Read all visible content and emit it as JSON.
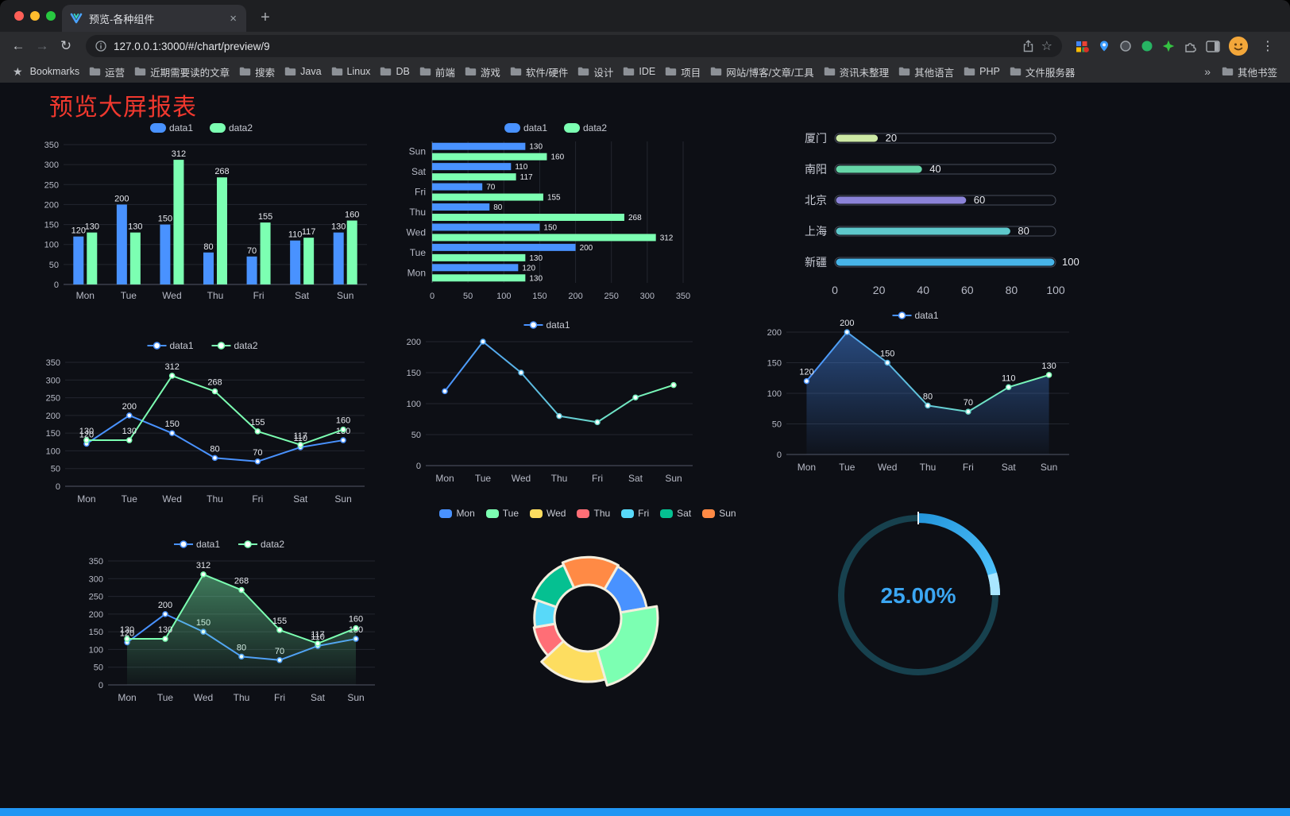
{
  "browser": {
    "tab_title": "预览-各种组件",
    "tab_close_label": "×",
    "new_tab_label": "+",
    "back_label": "←",
    "forward_label": "→",
    "reload_label": "↻",
    "url": "127.0.0.1:3000/#/chart/preview/9",
    "star_label": "☆",
    "menu_label": "⋮",
    "bookmarks_label": "Bookmarks",
    "bookmarks": [
      "运营",
      "近期需要读的文章",
      "搜索",
      "Java",
      "Linux",
      "DB",
      "前端",
      "游戏",
      "软件/硬件",
      "设计",
      "IDE",
      "项目",
      "网站/博客/文章/工具",
      "资讯未整理",
      "其他语言",
      "PHP",
      "文件服务器"
    ],
    "overflow_label": "»",
    "other_bookmarks_label": "其他书签"
  },
  "page": {
    "title": "预览大屏报表",
    "title_color": "#f0382e",
    "accent_bar_color": "#2196f3",
    "background": "#0d0f15"
  },
  "chart_data": [
    {
      "id": "grouped-bar",
      "type": "bar",
      "categories": [
        "Mon",
        "Tue",
        "Wed",
        "Thu",
        "Fri",
        "Sat",
        "Sun"
      ],
      "series": [
        {
          "name": "data1",
          "color": "#4992ff",
          "values": [
            120,
            200,
            150,
            80,
            70,
            110,
            130
          ]
        },
        {
          "name": "data2",
          "color": "#7cffb2",
          "values": [
            130,
            130,
            312,
            268,
            155,
            117,
            160
          ]
        }
      ],
      "ylim": [
        0,
        350
      ],
      "ytick_step": 50,
      "show_labels": true,
      "legend": "rect",
      "grid": true
    },
    {
      "id": "horizontal-bar",
      "type": "hbar",
      "categories": [
        "Mon",
        "Tue",
        "Wed",
        "Thu",
        "Fri",
        "Sat",
        "Sun"
      ],
      "series": [
        {
          "name": "data1",
          "color": "#4992ff",
          "values": [
            120,
            200,
            150,
            80,
            70,
            110,
            130
          ]
        },
        {
          "name": "data2",
          "color": "#7cffb2",
          "values": [
            130,
            130,
            312,
            268,
            155,
            117,
            160
          ]
        }
      ],
      "xlim": [
        0,
        350
      ],
      "xtick_step": 50,
      "show_labels": true,
      "legend": "rect",
      "grid": true
    },
    {
      "id": "progress-bars",
      "type": "progress",
      "max": 100,
      "xticks": [
        0,
        20,
        40,
        60,
        80,
        100
      ],
      "items": [
        {
          "label": "厦门",
          "value": 20,
          "color": "#cde9a5"
        },
        {
          "label": "南阳",
          "value": 40,
          "color": "#66d6a8"
        },
        {
          "label": "北京",
          "value": 60,
          "color": "#8b83d8"
        },
        {
          "label": "上海",
          "value": 80,
          "color": "#5ec8cb"
        },
        {
          "label": "新疆",
          "value": 100,
          "color": "#47b4e8"
        }
      ]
    },
    {
      "id": "line-two-series",
      "type": "line",
      "categories": [
        "Mon",
        "Tue",
        "Wed",
        "Thu",
        "Fri",
        "Sat",
        "Sun"
      ],
      "series": [
        {
          "name": "data1",
          "color": "#4992ff",
          "values": [
            120,
            200,
            150,
            80,
            70,
            110,
            130
          ]
        },
        {
          "name": "data2",
          "color": "#7cffb2",
          "values": [
            130,
            130,
            312,
            268,
            155,
            117,
            160
          ]
        }
      ],
      "ylim": [
        0,
        350
      ],
      "ytick_step": 50,
      "show_labels": true,
      "legend": "line",
      "grid": true
    },
    {
      "id": "line-gradient",
      "type": "line",
      "categories": [
        "Mon",
        "Tue",
        "Wed",
        "Thu",
        "Fri",
        "Sat",
        "Sun"
      ],
      "series": [
        {
          "name": "data1",
          "gradient": [
            "#4992ff",
            "#7cffb2"
          ],
          "values": [
            120,
            200,
            150,
            80,
            70,
            110,
            130
          ]
        }
      ],
      "ylim": [
        0,
        200
      ],
      "ytick_step": 50,
      "show_labels": false,
      "legend": "line",
      "grid": true
    },
    {
      "id": "area-single",
      "type": "line",
      "categories": [
        "Mon",
        "Tue",
        "Wed",
        "Thu",
        "Fri",
        "Sat",
        "Sun"
      ],
      "series": [
        {
          "name": "data1",
          "gradient": [
            "#4992ff",
            "#7cffb2"
          ],
          "area": true,
          "values": [
            120,
            200,
            150,
            80,
            70,
            110,
            130
          ]
        }
      ],
      "ylim": [
        0,
        200
      ],
      "ytick_step": 50,
      "show_labels": true,
      "legend": "line",
      "grid": true
    },
    {
      "id": "area-two-series",
      "type": "line",
      "categories": [
        "Mon",
        "Tue",
        "Wed",
        "Thu",
        "Fri",
        "Sat",
        "Sun"
      ],
      "series": [
        {
          "name": "data1",
          "color": "#4992ff",
          "values": [
            120,
            200,
            150,
            80,
            70,
            110,
            130
          ]
        },
        {
          "name": "data2",
          "color": "#7cffb2",
          "area": true,
          "values": [
            130,
            130,
            312,
            268,
            155,
            117,
            160
          ]
        }
      ],
      "ylim": [
        0,
        350
      ],
      "ytick_step": 50,
      "show_labels": true,
      "legend": "line",
      "grid": true
    },
    {
      "id": "rose-pie",
      "type": "pie",
      "rose": true,
      "items": [
        {
          "name": "Mon",
          "value": 120,
          "color": "#4992ff"
        },
        {
          "name": "Tue",
          "value": 200,
          "color": "#7cffb2"
        },
        {
          "name": "Wed",
          "value": 150,
          "color": "#fddd60"
        },
        {
          "name": "Thu",
          "value": 80,
          "color": "#ff6e76"
        },
        {
          "name": "Fri",
          "value": 70,
          "color": "#58d9f9"
        },
        {
          "name": "Sat",
          "value": 110,
          "color": "#05c091"
        },
        {
          "name": "Sun",
          "value": 130,
          "color": "#ff8a45"
        }
      ]
    },
    {
      "id": "gauge",
      "type": "gauge",
      "percent": 25,
      "label": "25.00%",
      "color": "#3ba6f2",
      "track_color": "#17414e"
    }
  ]
}
